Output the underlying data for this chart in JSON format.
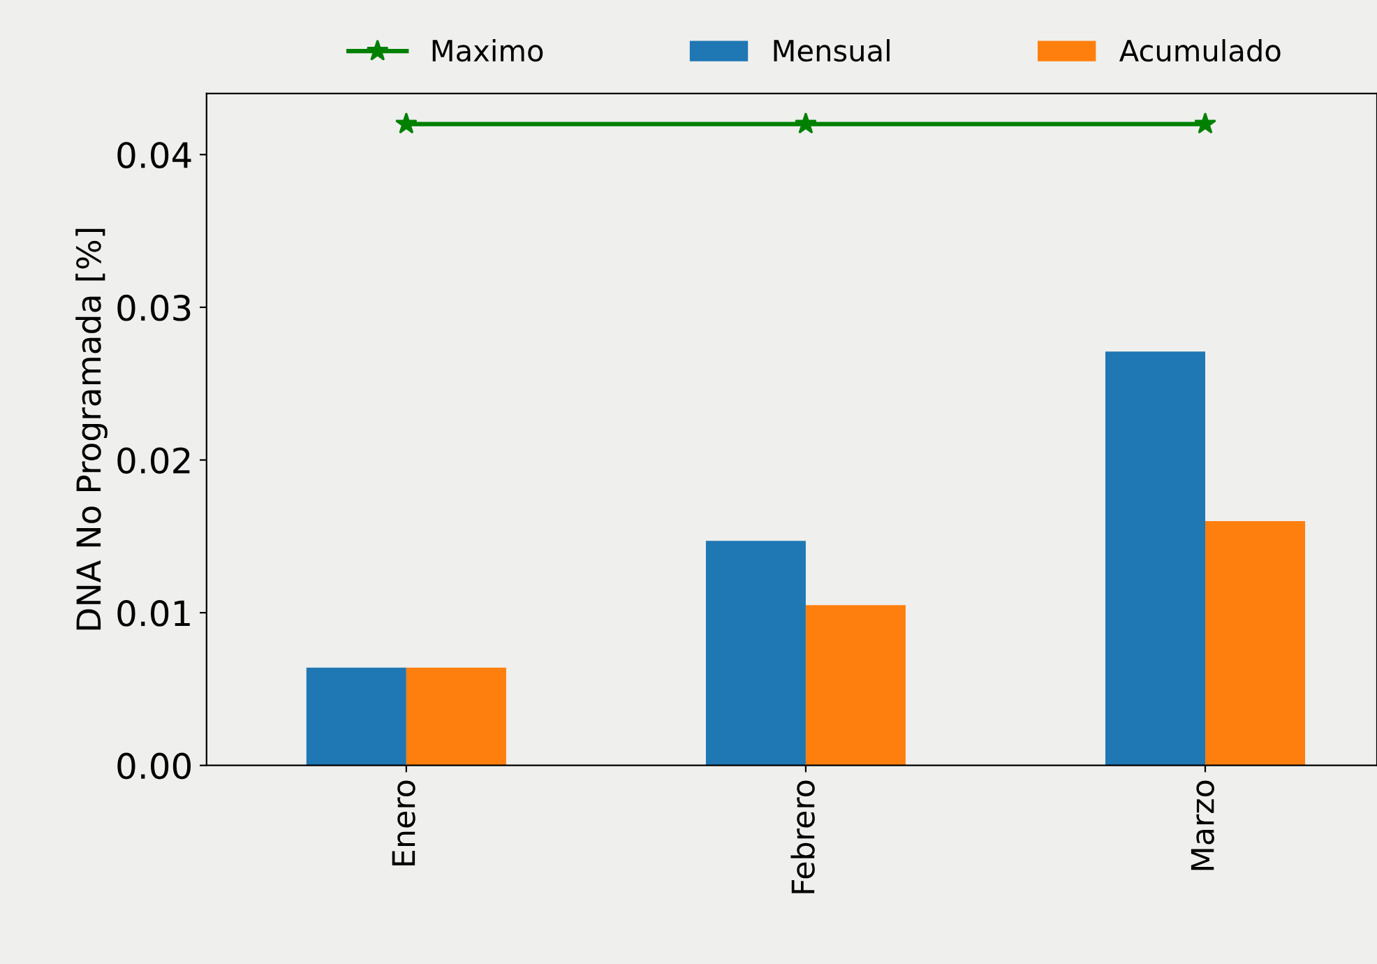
{
  "chart_data": {
    "type": "bar",
    "ylabel": "DNA No Programada [%]",
    "categories": [
      "Enero",
      "Febrero",
      "Marzo"
    ],
    "series": [
      {
        "name": "Maximo",
        "type": "line",
        "color": "#008000",
        "marker": "star",
        "values": [
          0.042,
          0.042,
          0.042
        ]
      },
      {
        "name": "Mensual",
        "color": "#1f77b4",
        "values": [
          0.0064,
          0.0147,
          0.0271
        ]
      },
      {
        "name": "Acumulado",
        "color": "#ff7f0e",
        "values": [
          0.0064,
          0.0105,
          0.016
        ]
      }
    ],
    "ylim": [
      0,
      0.044
    ],
    "yticks": [
      {
        "value": 0,
        "label": "0.00"
      },
      {
        "value": 0.01,
        "label": "0.01"
      },
      {
        "value": 0.02,
        "label": "0.02"
      },
      {
        "value": 0.03,
        "label": "0.03"
      },
      {
        "value": 0.04,
        "label": "0.04"
      }
    ],
    "grid": false,
    "legend": "top"
  }
}
